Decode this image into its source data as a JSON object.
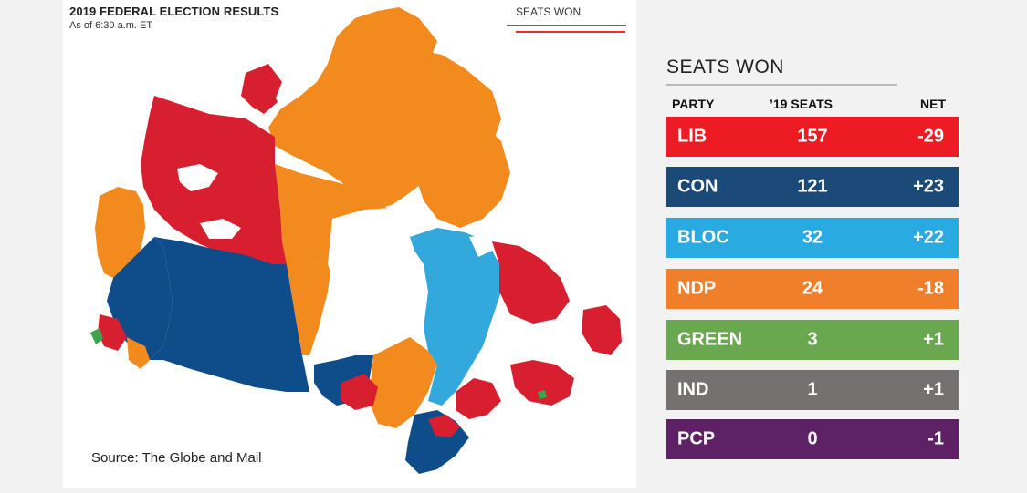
{
  "map": {
    "title": "2019 FEDERAL ELECTION RESULTS",
    "subtitle": "As of 6:30 a.m. ET",
    "legend_label": "SEATS WON",
    "source": "Source: The Globe and Mail",
    "colors": {
      "liberal": "#d71f2f",
      "conservative": "#0e4c8a",
      "bloc": "#33a8dd",
      "ndp": "#f28a1e",
      "green": "#3aa54a"
    }
  },
  "seats": {
    "title": "SEATS WON",
    "headers": {
      "party": "PARTY",
      "seats": "’19 SEATS",
      "net": "NET"
    },
    "rows": [
      {
        "party": "LIB",
        "seats": "157",
        "net": "-29",
        "color": "#ed1c24"
      },
      {
        "party": "CON",
        "seats": "121",
        "net": "+23",
        "color": "#1b4a78"
      },
      {
        "party": "BLOC",
        "seats": "32",
        "net": "+22",
        "color": "#29abe2"
      },
      {
        "party": "NDP",
        "seats": "24",
        "net": "-18",
        "color": "#f07f2c"
      },
      {
        "party": "GREEN",
        "seats": "3",
        "net": "+1",
        "color": "#6aa84f"
      },
      {
        "party": "IND",
        "seats": "1",
        "net": "+1",
        "color": "#767171"
      },
      {
        "party": "PCP",
        "seats": "0",
        "net": "-1",
        "color": "#5e2166"
      }
    ]
  }
}
